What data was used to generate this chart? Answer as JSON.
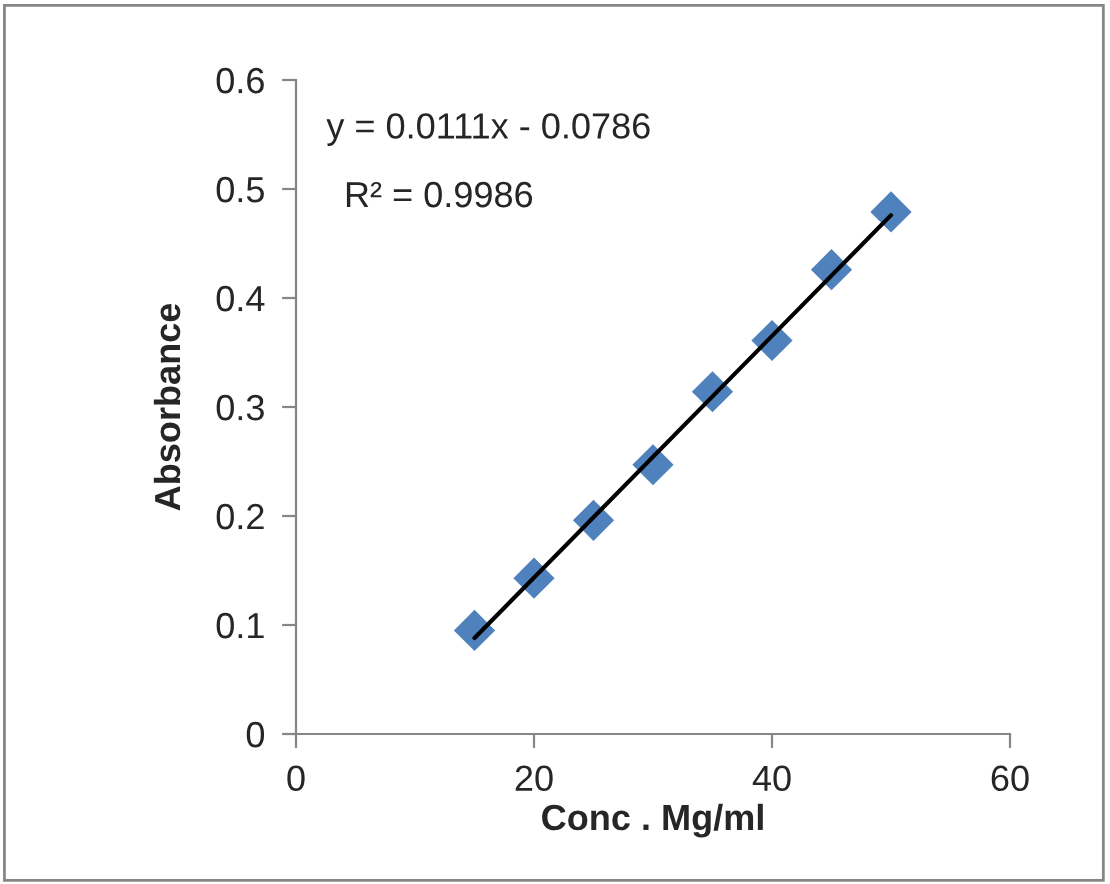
{
  "chart_data": {
    "type": "scatter",
    "xlabel": "Conc . Mg/ml",
    "ylabel": "Absorbance",
    "annotations": [
      "y = 0.0111x - 0.0786",
      "R² = 0.9986"
    ],
    "xlim": [
      0,
      60
    ],
    "xticks": [
      0,
      20,
      40,
      60
    ],
    "ylim": [
      0,
      0.6
    ],
    "yticks": [
      0,
      0.1,
      0.2,
      0.3,
      0.4,
      0.5,
      0.6
    ],
    "grid": false,
    "legend": false,
    "series": [
      {
        "color": "#4f81bd",
        "marker": "diamond",
        "x": [
          15,
          20,
          25,
          30,
          35,
          40,
          45,
          50
        ],
        "values": [
          0.095,
          0.143,
          0.196,
          0.247,
          0.314,
          0.361,
          0.426,
          0.479
        ]
      },
      {
        "type": "line",
        "color": "#000000",
        "marker": "none",
        "line_style": "solid",
        "x": [
          15,
          50
        ],
        "values": [
          0.088,
          0.476
        ]
      }
    ]
  }
}
